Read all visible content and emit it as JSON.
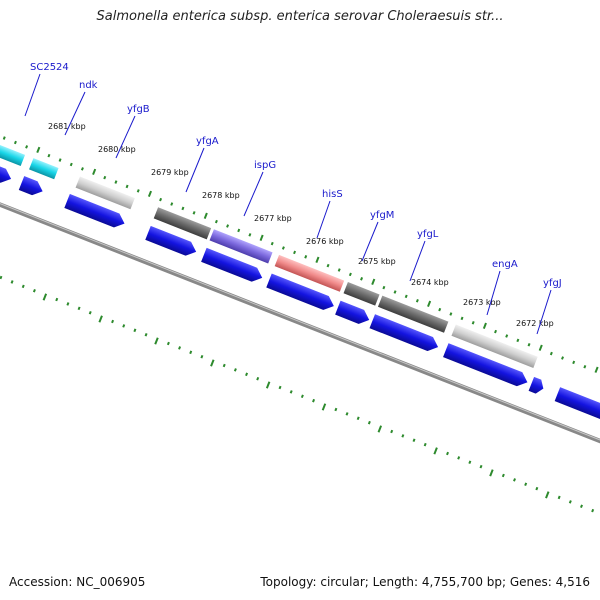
{
  "title": "Salmonella enterica subsp. enterica serovar Choleraesuis str...",
  "footer": {
    "accession": "Accession: NC_006905",
    "topology": "Topology: circular; Length: 4,755,700 bp; Genes: 4,516"
  },
  "gene_labels": [
    "SC2524",
    "ndk",
    "yfgB",
    "yfgA",
    "ispG",
    "hisS",
    "yfgM",
    "yfgL",
    "engA",
    "yfgJ"
  ],
  "kbp_labels": [
    "2681 kbp",
    "2680 kbp",
    "2679 kbp",
    "2678 kbp",
    "2677 kbp",
    "2676 kbp",
    "2675 kbp",
    "2674 kbp",
    "2673 kbp",
    "2672 kbp"
  ],
  "colors": {
    "cyan_gene": "#19d6e8",
    "gray_gene": "#cfcfcf",
    "dark_gene": "#6a6a6a",
    "purple_gene": "#7b68dd",
    "pink_gene": "#f08a8a",
    "cds_blue": "#1414e0",
    "backbone": "#888888",
    "tick_green": "#2d8a2d",
    "label_blue": "#1a1acc"
  }
}
